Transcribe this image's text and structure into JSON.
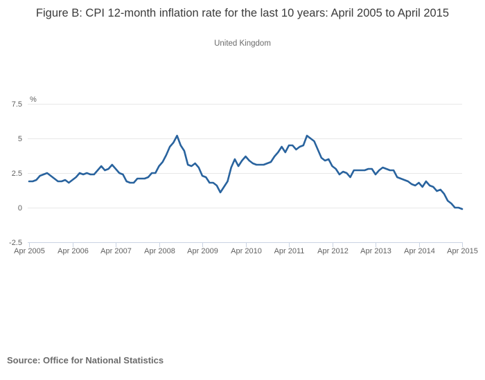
{
  "header": {
    "title": "Figure B: CPI 12-month inflation rate for the last 10 years: April 2005 to April 2015",
    "subtitle": "United Kingdom"
  },
  "footer": {
    "source": "Source: Office for National Statistics"
  },
  "colors": {
    "line": "#29639e",
    "grid": "#e7e7e7",
    "axis": "#c9d3e3",
    "title_text": "#3b3b3b",
    "subtitle_text": "#6a6a6a",
    "tick_text": "#5f5f5f",
    "source_text": "#6b6b6b"
  },
  "chart_data": {
    "type": "line",
    "title": "Figure B: CPI 12-month inflation rate for the last 10 years: April 2005 to April 2015",
    "subtitle": "United Kingdom",
    "unit_label": "%",
    "xlabel": "",
    "ylabel": "%",
    "x_start": "Apr 2005",
    "x_end": "Apr 2015",
    "frequency": "monthly",
    "x_tick_labels": [
      "Apr 2005",
      "Apr 2006",
      "Apr 2007",
      "Apr 2008",
      "Apr 2009",
      "Apr 2010",
      "Apr 2011",
      "Apr 2012",
      "Apr 2013",
      "Apr 2014",
      "Apr 2015"
    ],
    "y_ticks": [
      7.5,
      5,
      2.5,
      0,
      -2.5
    ],
    "y_tick_labels": [
      "7.5",
      "5",
      "2.5",
      "0",
      "-2.5"
    ],
    "ylim": [
      -2.5,
      7.5
    ],
    "grid": true,
    "legend": "none",
    "series": [
      {
        "name": "CPI 12-month inflation rate (%)",
        "color": "#29639e",
        "values": [
          1.9,
          1.9,
          2.0,
          2.3,
          2.4,
          2.5,
          2.3,
          2.1,
          1.9,
          1.9,
          2.0,
          1.8,
          2.0,
          2.2,
          2.5,
          2.4,
          2.5,
          2.4,
          2.4,
          2.7,
          3.0,
          2.7,
          2.8,
          3.1,
          2.8,
          2.5,
          2.4,
          1.9,
          1.8,
          1.8,
          2.1,
          2.1,
          2.1,
          2.2,
          2.5,
          2.5,
          3.0,
          3.3,
          3.8,
          4.4,
          4.7,
          5.2,
          4.5,
          4.1,
          3.1,
          3.0,
          3.2,
          2.9,
          2.3,
          2.2,
          1.8,
          1.8,
          1.6,
          1.1,
          1.5,
          1.9,
          2.9,
          3.5,
          3.0,
          3.4,
          3.7,
          3.4,
          3.2,
          3.1,
          3.1,
          3.1,
          3.2,
          3.3,
          3.7,
          4.0,
          4.4,
          4.0,
          4.5,
          4.5,
          4.2,
          4.4,
          4.5,
          5.2,
          5.0,
          4.8,
          4.2,
          3.6,
          3.4,
          3.5,
          3.0,
          2.8,
          2.4,
          2.6,
          2.5,
          2.2,
          2.7,
          2.7,
          2.7,
          2.7,
          2.8,
          2.8,
          2.4,
          2.7,
          2.9,
          2.8,
          2.7,
          2.7,
          2.2,
          2.1,
          2.0,
          1.9,
          1.7,
          1.6,
          1.8,
          1.5,
          1.9,
          1.6,
          1.5,
          1.2,
          1.3,
          1.0,
          0.5,
          0.3,
          0.0,
          0.0,
          -0.1
        ]
      }
    ]
  }
}
